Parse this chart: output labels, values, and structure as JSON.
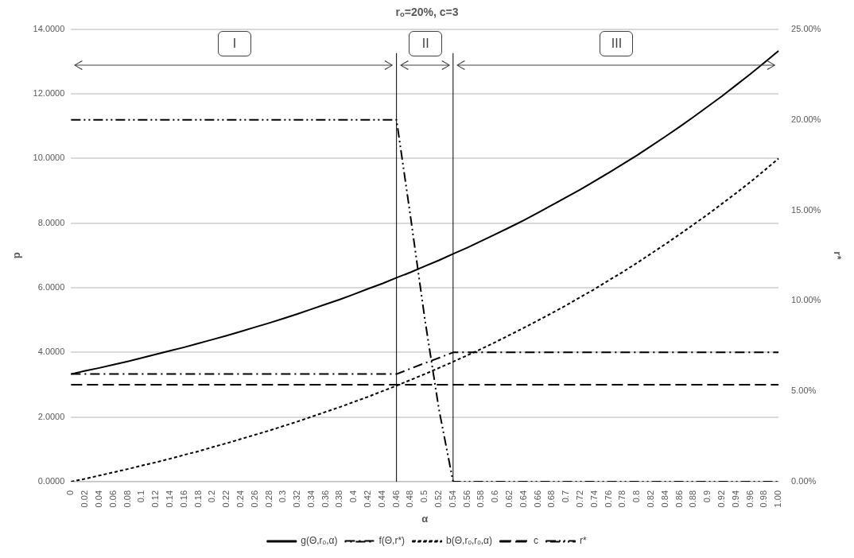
{
  "chart_data": {
    "type": "line",
    "title": "rₒ=20%, c=3",
    "xlabel": "α",
    "ylabel": "p",
    "y2label": "r*",
    "categories": [
      "0",
      "0.02",
      "0.04",
      "0.06",
      "0.08",
      "0.1",
      "0.12",
      "0.14",
      "0.16",
      "0.18",
      "0.2",
      "0.22",
      "0.24",
      "0.26",
      "0.28",
      "0.3",
      "0.32",
      "0.34",
      "0.36",
      "0.38",
      "0.4",
      "0.42",
      "0.44",
      "0.46",
      "0.48",
      "0.5",
      "0.52",
      "0.54",
      "0.56",
      "0.58",
      "0.6",
      "0.62",
      "0.64",
      "0.66",
      "0.68",
      "0.7",
      "0.72",
      "0.74",
      "0.76",
      "0.78",
      "0.8",
      "0.82",
      "0.84",
      "0.86",
      "0.88",
      "0.9",
      "0.92",
      "0.94",
      "0.96",
      "0.98",
      "1.00"
    ],
    "series": [
      {
        "name": "g(Θ,rₒ,α)",
        "color": "#000000",
        "line_style": "solid",
        "values": [
          3.33,
          3.43,
          3.52,
          3.62,
          3.72,
          3.83,
          3.94,
          4.05,
          4.16,
          4.28,
          4.4,
          4.52,
          4.65,
          4.78,
          4.91,
          5.05,
          5.19,
          5.34,
          5.49,
          5.64,
          5.8,
          5.97,
          6.13,
          6.31,
          6.48,
          6.67,
          6.85,
          7.05,
          7.24,
          7.45,
          7.66,
          7.87,
          8.09,
          8.32,
          8.56,
          8.8,
          9.04,
          9.3,
          9.56,
          9.83,
          10.1,
          10.39,
          10.68,
          10.98,
          11.29,
          11.61,
          11.93,
          12.27,
          12.61,
          12.97,
          13.33
        ]
      },
      {
        "name": "f(Θ,r*)",
        "color": "#000000",
        "line_style": "dashdot",
        "values": [
          3.33,
          3.33,
          3.33,
          3.33,
          3.33,
          3.33,
          3.33,
          3.33,
          3.33,
          3.33,
          3.33,
          3.33,
          3.33,
          3.33,
          3.33,
          3.33,
          3.33,
          3.33,
          3.33,
          3.33,
          3.33,
          3.33,
          3.33,
          3.33,
          3.5,
          3.67,
          3.83,
          4.0,
          4.0,
          4.0,
          4.0,
          4.0,
          4.0,
          4.0,
          4.0,
          4.0,
          4.0,
          4.0,
          4.0,
          4.0,
          4.0,
          4.0,
          4.0,
          4.0,
          4.0,
          4.0,
          4.0,
          4.0,
          4.0,
          4.0,
          4.0
        ]
      },
      {
        "name": "b(Θ,rₒ,rₒ,α)",
        "color": "#000000",
        "line_style": "dotted",
        "values": [
          0,
          0.09,
          0.19,
          0.29,
          0.39,
          0.5,
          0.6,
          0.71,
          0.83,
          0.94,
          1.07,
          1.19,
          1.32,
          1.45,
          1.58,
          1.72,
          1.86,
          2.01,
          2.16,
          2.31,
          2.47,
          2.63,
          2.8,
          2.97,
          3.15,
          3.33,
          3.52,
          3.71,
          3.91,
          4.11,
          4.32,
          4.54,
          4.76,
          4.99,
          5.22,
          5.46,
          5.71,
          5.96,
          6.23,
          6.49,
          6.77,
          7.06,
          7.35,
          7.65,
          7.96,
          8.27,
          8.6,
          8.93,
          9.27,
          9.63,
          10.0
        ]
      },
      {
        "name": "c",
        "color": "#000000",
        "line_style": "dashed",
        "values": [
          3,
          3,
          3,
          3,
          3,
          3,
          3,
          3,
          3,
          3,
          3,
          3,
          3,
          3,
          3,
          3,
          3,
          3,
          3,
          3,
          3,
          3,
          3,
          3,
          3,
          3,
          3,
          3,
          3,
          3,
          3,
          3,
          3,
          3,
          3,
          3,
          3,
          3,
          3,
          3,
          3,
          3,
          3,
          3,
          3,
          3,
          3,
          3,
          3,
          3,
          3
        ]
      },
      {
        "name": "r*",
        "color": "#000000",
        "line_style": "dashdotdot",
        "axis": "y2",
        "values": [
          20,
          20,
          20,
          20,
          20,
          20,
          20,
          20,
          20,
          20,
          20,
          20,
          20,
          20,
          20,
          20,
          20,
          20,
          20,
          20,
          20,
          20,
          20,
          20,
          14.6,
          9,
          4,
          0,
          0,
          0,
          0,
          0,
          0,
          0,
          0,
          0,
          0,
          0,
          0,
          0,
          0,
          0,
          0,
          0,
          0,
          0,
          0,
          0,
          0,
          0,
          0
        ]
      }
    ],
    "ylim": [
      0,
      14
    ],
    "yticks": [
      {
        "value": 0,
        "label": "0.0000"
      },
      {
        "value": 2,
        "label": "2.0000"
      },
      {
        "value": 4,
        "label": "4.0000"
      },
      {
        "value": 6,
        "label": "6.0000"
      },
      {
        "value": 8,
        "label": "8.0000"
      },
      {
        "value": 10,
        "label": "10.0000"
      },
      {
        "value": 12,
        "label": "12.0000"
      },
      {
        "value": 14,
        "label": "14.0000"
      }
    ],
    "y2lim": [
      0,
      25
    ],
    "y2ticks": [
      {
        "value": 0,
        "label": "0.00%"
      },
      {
        "value": 5,
        "label": "5.00%"
      },
      {
        "value": 10,
        "label": "10.00%"
      },
      {
        "value": 15,
        "label": "15.00%"
      },
      {
        "value": 20,
        "label": "20.00%"
      },
      {
        "value": 25,
        "label": "25.00%"
      }
    ],
    "ref_lines": [
      {
        "axis": "x",
        "value": "0.46",
        "color": "#000000"
      },
      {
        "axis": "x",
        "value": "0.54",
        "color": "#000000"
      }
    ],
    "annotations": [
      "I",
      "II",
      "III"
    ],
    "grid": "y",
    "legend": "bottom",
    "marker": "none"
  }
}
